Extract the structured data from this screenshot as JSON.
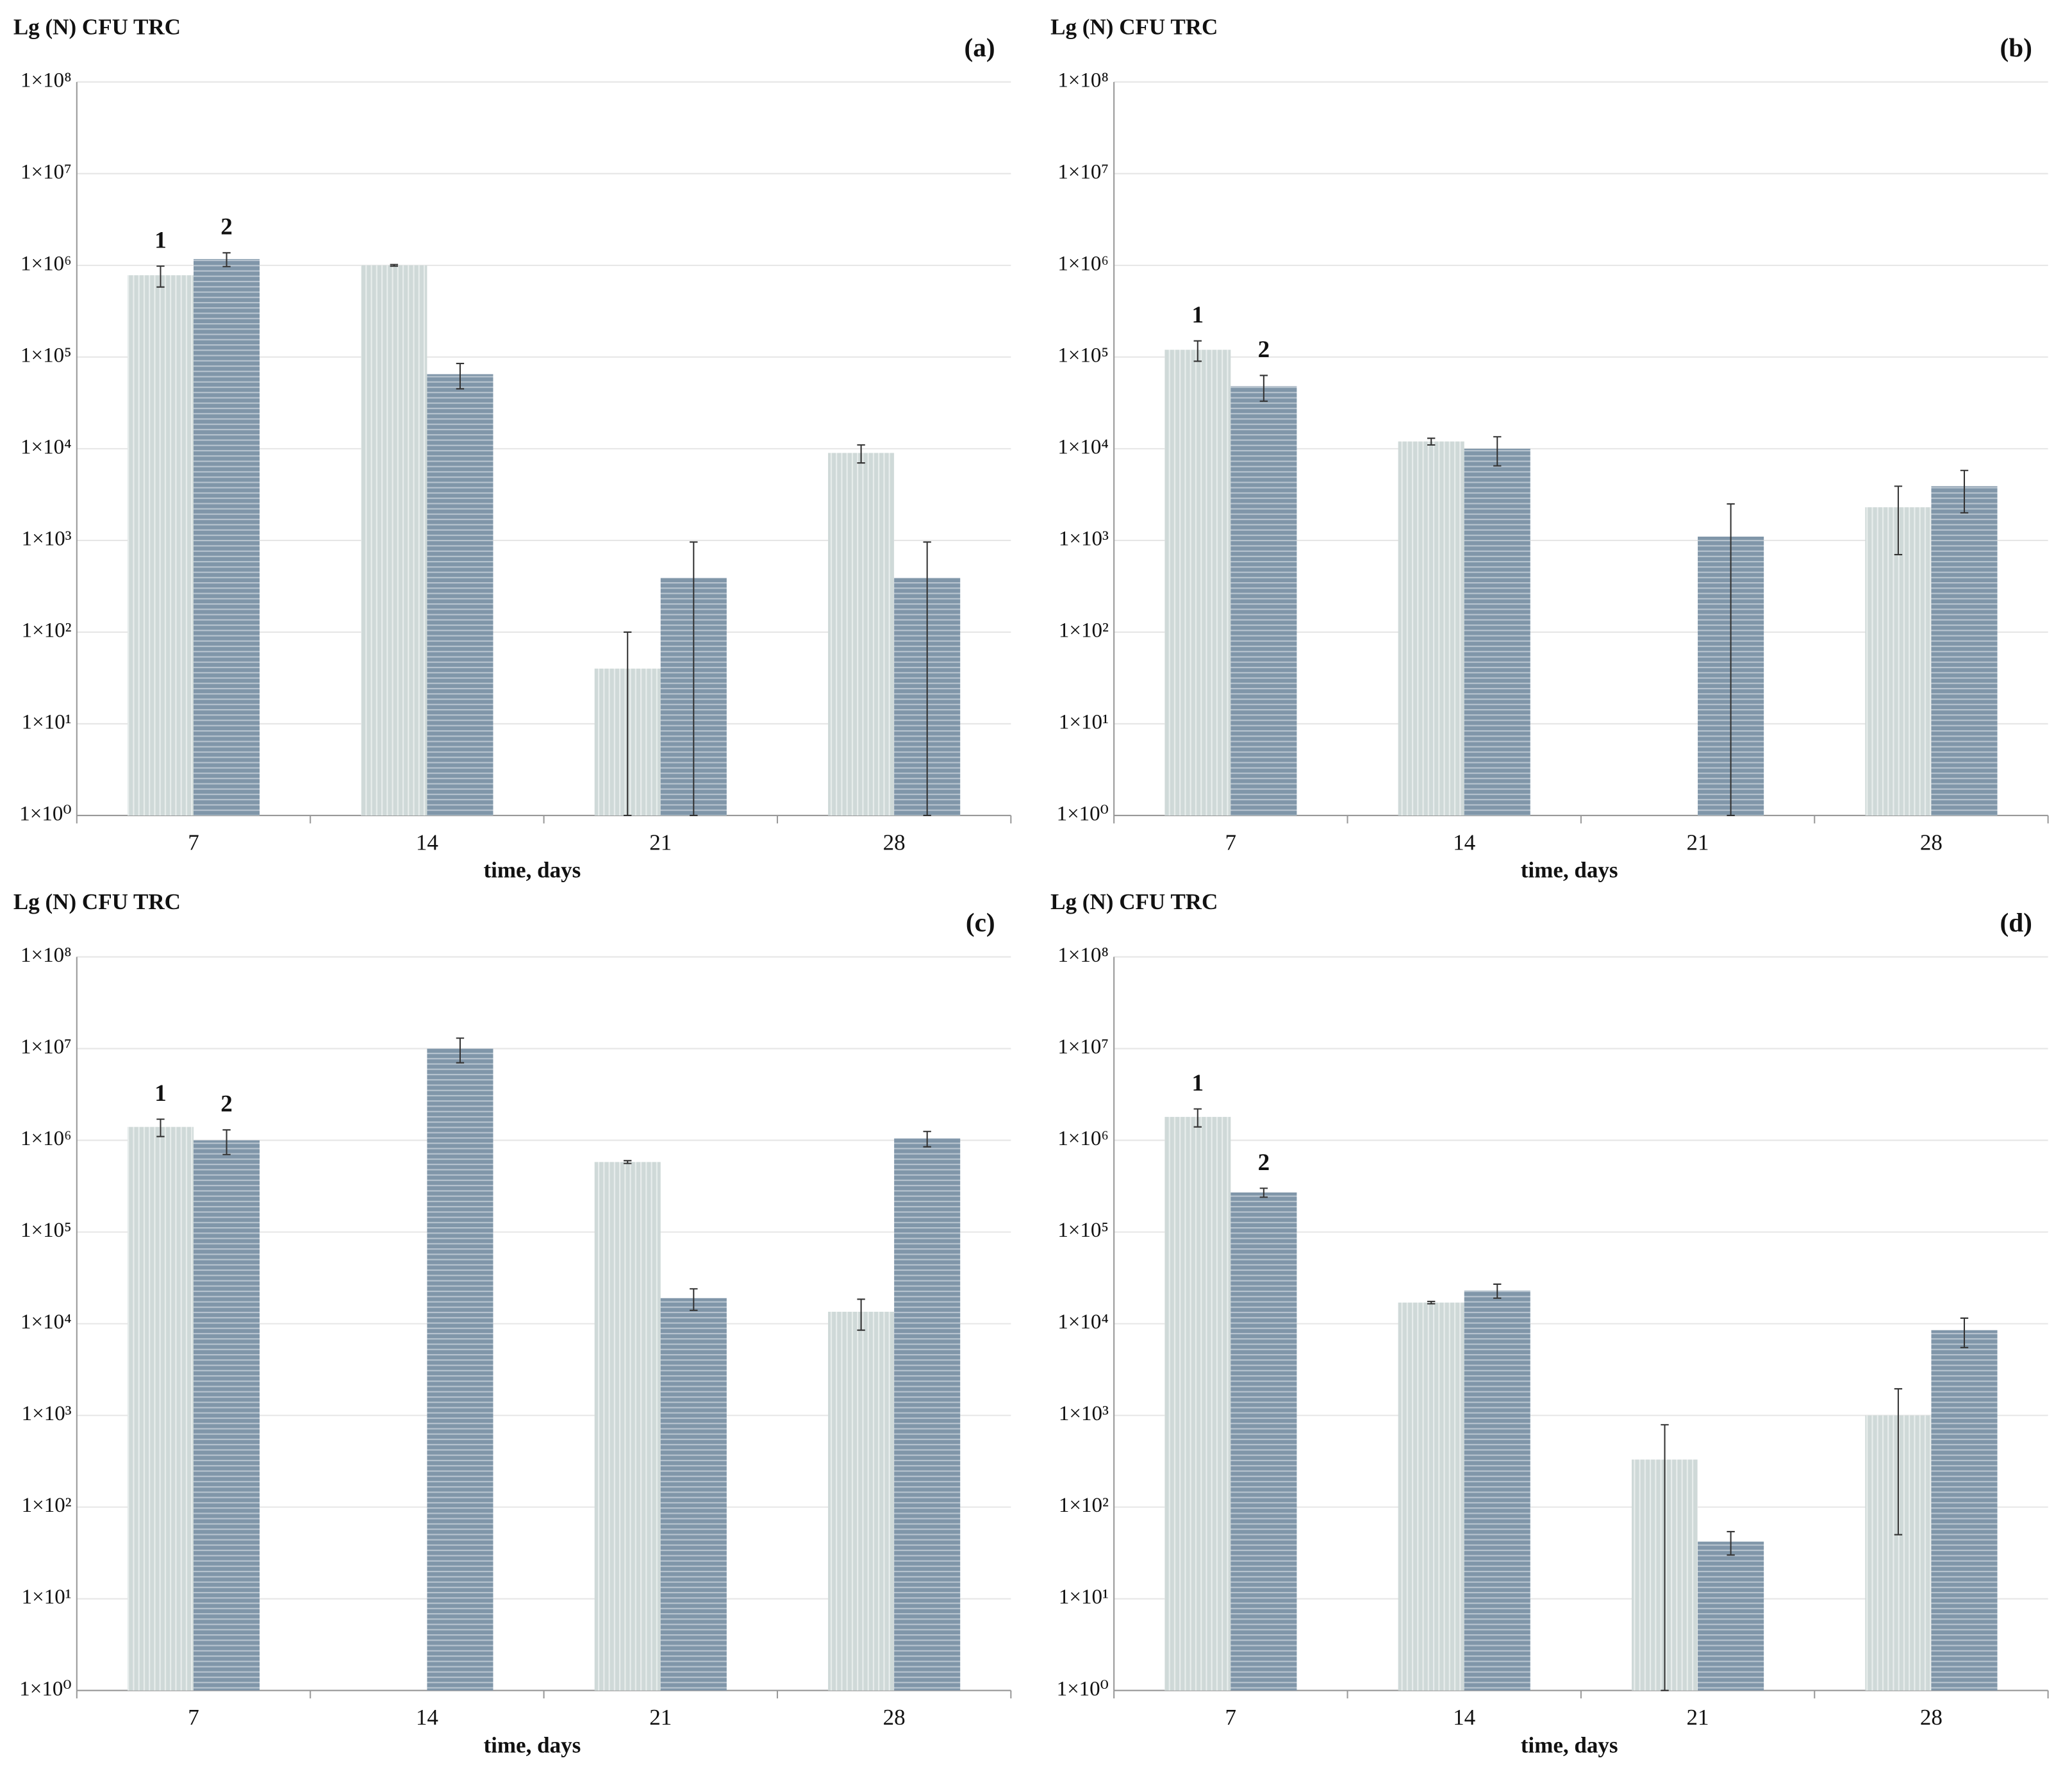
{
  "chart_data": [
    {
      "type": "bar",
      "log_scale": true,
      "grid": true,
      "title": "Lg (N) CFU TRC",
      "panel_label": "(a)",
      "x_label": "time, days",
      "categories": [
        "7",
        "14",
        "21",
        "28"
      ],
      "ylim": [
        1,
        100000000
      ],
      "yticks": [
        {
          "value": 1,
          "label": "1×10⁰"
        },
        {
          "value": 10,
          "label": "1×10¹"
        },
        {
          "value": 100,
          "label": "1×10²"
        },
        {
          "value": 1000,
          "label": "1×10³"
        },
        {
          "value": 10000,
          "label": "1×10⁴"
        },
        {
          "value": 100000,
          "label": "1×10⁵"
        },
        {
          "value": 1000000,
          "label": "1×10⁶"
        },
        {
          "value": 10000000,
          "label": "1×10⁷"
        },
        {
          "value": 100000000,
          "label": "1×10⁸"
        }
      ],
      "series": [
        {
          "name": "1",
          "color": "#cfd9d8",
          "values": [
            780000,
            1000000,
            40,
            9000
          ],
          "errors": [
            200000,
            20000,
            60,
            2000
          ]
        },
        {
          "name": "2",
          "color": "#8096a9",
          "values": [
            1170000,
            65000,
            390,
            390
          ],
          "errors": [
            200000,
            20000,
            570,
            570
          ]
        }
      ]
    },
    {
      "type": "bar",
      "log_scale": true,
      "grid": true,
      "title": "Lg (N) CFU TRC",
      "panel_label": "(b)",
      "x_label": "time, days",
      "categories": [
        "7",
        "14",
        "21",
        "28"
      ],
      "ylim": [
        1,
        100000000
      ],
      "yticks": [
        {
          "value": 1,
          "label": "1×10⁰"
        },
        {
          "value": 10,
          "label": "1×10¹"
        },
        {
          "value": 100,
          "label": "1×10²"
        },
        {
          "value": 1000,
          "label": "1×10³"
        },
        {
          "value": 10000,
          "label": "1×10⁴"
        },
        {
          "value": 100000,
          "label": "1×10⁵"
        },
        {
          "value": 1000000,
          "label": "1×10⁶"
        },
        {
          "value": 10000000,
          "label": "1×10⁷"
        },
        {
          "value": 100000000,
          "label": "1×10⁸"
        }
      ],
      "series": [
        {
          "name": "1",
          "color": "#cfd9d8",
          "values": [
            120000,
            12000,
            null,
            2300
          ],
          "errors": [
            30000,
            1000,
            null,
            1600
          ]
        },
        {
          "name": "2",
          "color": "#8096a9",
          "values": [
            48000,
            10000,
            1100,
            3900
          ],
          "errors": [
            15000,
            3500,
            1400,
            1900
          ]
        }
      ]
    },
    {
      "type": "bar",
      "log_scale": true,
      "grid": true,
      "title": "Lg (N) CFU TRC",
      "panel_label": "(c)",
      "x_label": "time, days",
      "categories": [
        "7",
        "14",
        "21",
        "28"
      ],
      "ylim": [
        1,
        100000000
      ],
      "yticks": [
        {
          "value": 1,
          "label": "1×10⁰"
        },
        {
          "value": 10,
          "label": "1×10¹"
        },
        {
          "value": 100,
          "label": "1×10²"
        },
        {
          "value": 1000,
          "label": "1×10³"
        },
        {
          "value": 10000,
          "label": "1×10⁴"
        },
        {
          "value": 100000,
          "label": "1×10⁵"
        },
        {
          "value": 1000000,
          "label": "1×10⁶"
        },
        {
          "value": 10000000,
          "label": "1×10⁷"
        },
        {
          "value": 100000000,
          "label": "1×10⁸"
        }
      ],
      "series": [
        {
          "name": "1",
          "color": "#cfd9d8",
          "values": [
            1400000,
            null,
            580000,
            13500
          ],
          "errors": [
            300000,
            null,
            20000,
            5000
          ]
        },
        {
          "name": "2",
          "color": "#8096a9",
          "values": [
            1000000,
            10000000,
            19000,
            1050000
          ],
          "errors": [
            300000,
            3000000,
            5000,
            200000
          ]
        }
      ]
    },
    {
      "type": "bar",
      "log_scale": true,
      "grid": true,
      "title": "Lg (N) CFU TRC",
      "panel_label": "(d)",
      "x_label": "time, days",
      "categories": [
        "7",
        "14",
        "21",
        "28"
      ],
      "ylim": [
        1,
        100000000
      ],
      "yticks": [
        {
          "value": 1,
          "label": "1×10⁰"
        },
        {
          "value": 10,
          "label": "1×10¹"
        },
        {
          "value": 100,
          "label": "1×10²"
        },
        {
          "value": 1000,
          "label": "1×10³"
        },
        {
          "value": 10000,
          "label": "1×10⁴"
        },
        {
          "value": 100000,
          "label": "1×10⁵"
        },
        {
          "value": 1000000,
          "label": "1×10⁶"
        },
        {
          "value": 10000000,
          "label": "1×10⁷"
        },
        {
          "value": 100000000,
          "label": "1×10⁸"
        }
      ],
      "series": [
        {
          "name": "1",
          "color": "#cfd9d8",
          "values": [
            1800000,
            17000,
            330,
            1000
          ],
          "errors": [
            400000,
            500,
            460,
            950
          ]
        },
        {
          "name": "2",
          "color": "#8096a9",
          "values": [
            270000,
            23000,
            42,
            8500
          ],
          "errors": [
            30000,
            4000,
            12,
            3000
          ]
        }
      ]
    }
  ]
}
